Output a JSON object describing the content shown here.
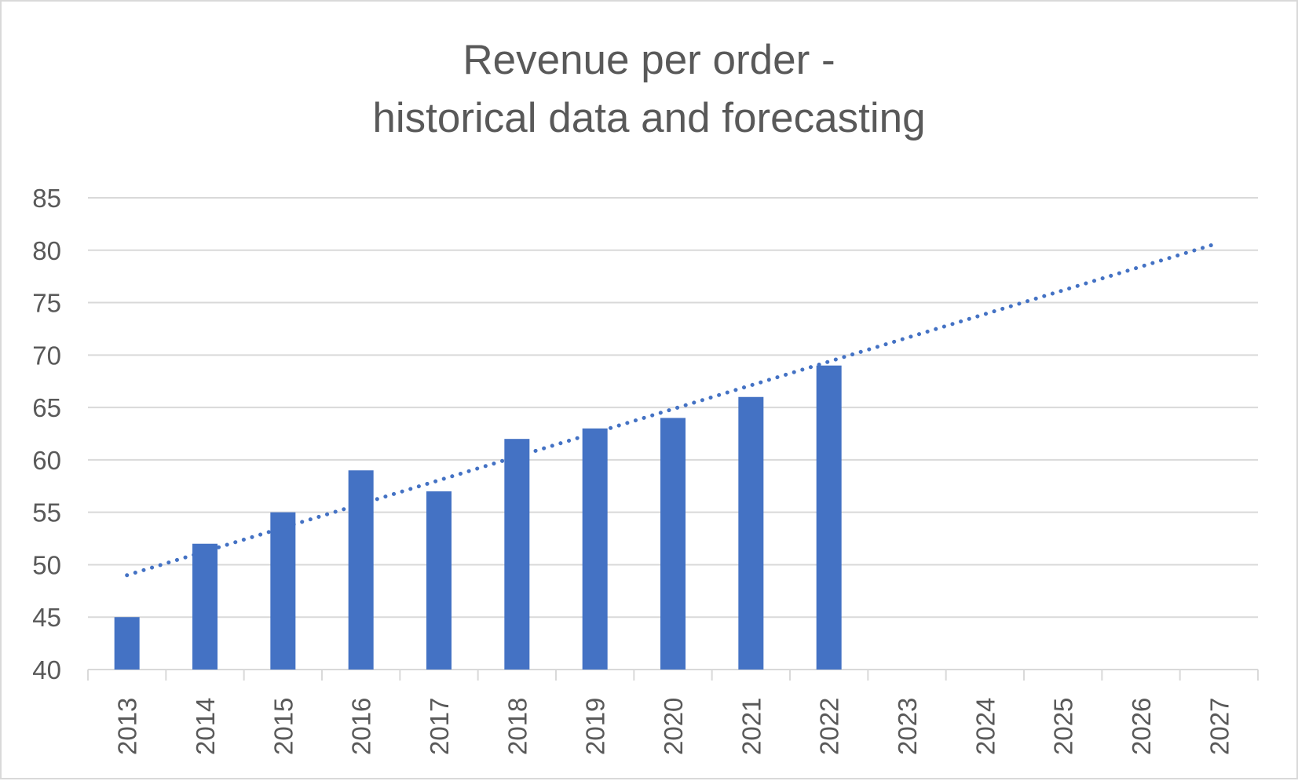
{
  "chart_data": {
    "type": "bar",
    "title_lines": [
      "Revenue per order -",
      "historical data and forecasting"
    ],
    "xlabel": "",
    "ylabel": "",
    "categories": [
      "2013",
      "2014",
      "2015",
      "2016",
      "2017",
      "2018",
      "2019",
      "2020",
      "2021",
      "2022",
      "2023",
      "2024",
      "2025",
      "2026",
      "2027"
    ],
    "series": [
      {
        "values": [
          45,
          52,
          55,
          59,
          57,
          62,
          63,
          64,
          66,
          69,
          null,
          null,
          null,
          null,
          null
        ],
        "color": "#4472c4"
      }
    ],
    "trendline": {
      "type": "linear",
      "style": "dotted",
      "color": "#4472c4",
      "start": 49,
      "end": 80.7
    },
    "ylim": [
      40,
      85
    ],
    "yticks": [
      40,
      45,
      50,
      55,
      60,
      65,
      70,
      75,
      80,
      85
    ],
    "grid": true,
    "legend": "none"
  }
}
